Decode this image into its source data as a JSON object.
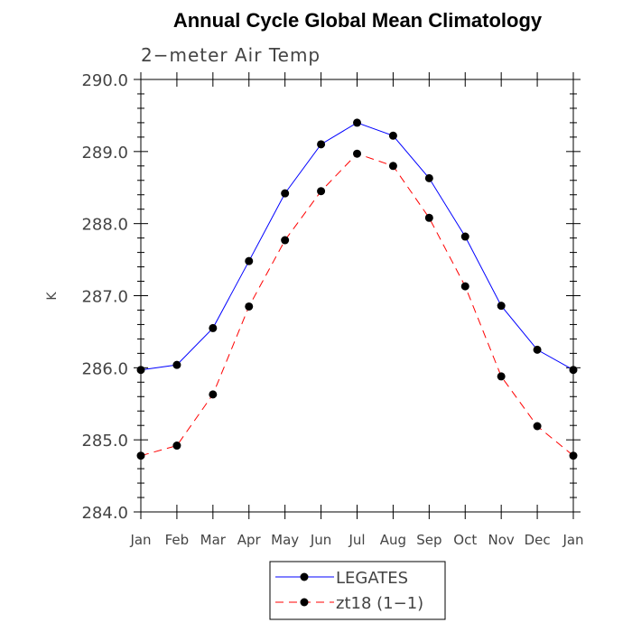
{
  "chart_data": {
    "type": "line",
    "title": "Annual Cycle Global Mean Climatology",
    "subtitle": "2−meter Air Temp",
    "xlabel": "",
    "ylabel": "K",
    "categories": [
      "Jan",
      "Feb",
      "Mar",
      "Apr",
      "May",
      "Jun",
      "Jul",
      "Aug",
      "Sep",
      "Oct",
      "Nov",
      "Dec",
      "Jan"
    ],
    "ylim": [
      284.0,
      290.0
    ],
    "yticks": [
      "284.0",
      "285.0",
      "286.0",
      "287.0",
      "288.0",
      "289.0",
      "290.0"
    ],
    "grid": false,
    "legend_position": "bottom-center",
    "series": [
      {
        "name": "LEGATES",
        "color": "#0000ff",
        "style": "solid",
        "marker": "circle",
        "values": [
          285.97,
          286.04,
          286.55,
          287.48,
          288.42,
          289.1,
          289.4,
          289.22,
          288.63,
          287.82,
          286.86,
          286.25,
          285.97
        ]
      },
      {
        "name": "zt18 (1−1)",
        "color": "#ff0000",
        "style": "dashed",
        "marker": "circle",
        "values": [
          284.78,
          284.92,
          285.63,
          286.85,
          287.77,
          288.45,
          288.97,
          288.8,
          288.08,
          287.13,
          285.88,
          285.19,
          284.78
        ]
      }
    ]
  }
}
